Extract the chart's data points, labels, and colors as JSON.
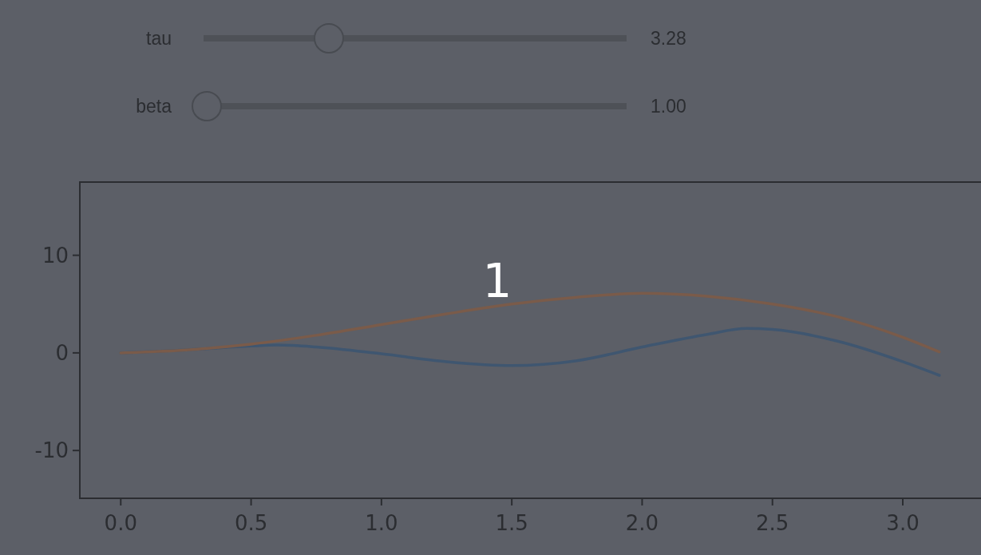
{
  "chart_data": [
    {
      "type": "other",
      "annotations": [
        "tau",
        "3.28",
        "beta",
        "1.00"
      ]
    },
    {
      "type": "line",
      "xlim": [
        -0.157,
        3.3
      ],
      "ylim": [
        -14.9,
        17.5
      ],
      "xticks": [
        {
          "value": 0,
          "label": "0.0"
        },
        {
          "value": 0.5,
          "label": "0.5"
        },
        {
          "value": 1,
          "label": "1.0"
        },
        {
          "value": 1.5,
          "label": "1.5"
        },
        {
          "value": 2,
          "label": "2.0"
        },
        {
          "value": 2.5,
          "label": "2.5"
        },
        {
          "value": 3,
          "label": "3.0"
        }
      ],
      "yticks": [
        -10,
        0,
        10
      ],
      "annotations": [
        "1"
      ],
      "series": [
        {
          "color": "#3f5670",
          "x": [
            0,
            0.25,
            0.5,
            0.6,
            0.75,
            1.0,
            1.25,
            1.5,
            1.75,
            2.0,
            2.25,
            2.4,
            2.5,
            2.75,
            3.0,
            3.14
          ],
          "values": [
            0,
            0.3,
            0.7,
            0.8,
            0.6,
            -0.1,
            -0.9,
            -1.3,
            -0.8,
            0.6,
            1.9,
            2.5,
            2.4,
            1.2,
            -0.9,
            -2.3
          ]
        },
        {
          "color": "#7a5b4a",
          "x": [
            0,
            0.25,
            0.5,
            0.75,
            1.0,
            1.25,
            1.5,
            1.75,
            2.0,
            2.25,
            2.5,
            2.75,
            3.0,
            3.14
          ],
          "values": [
            0,
            0.3,
            0.9,
            1.8,
            2.9,
            4.0,
            5.0,
            5.7,
            6.1,
            5.8,
            5.0,
            3.7,
            1.6,
            0.1
          ]
        }
      ]
    }
  ]
}
